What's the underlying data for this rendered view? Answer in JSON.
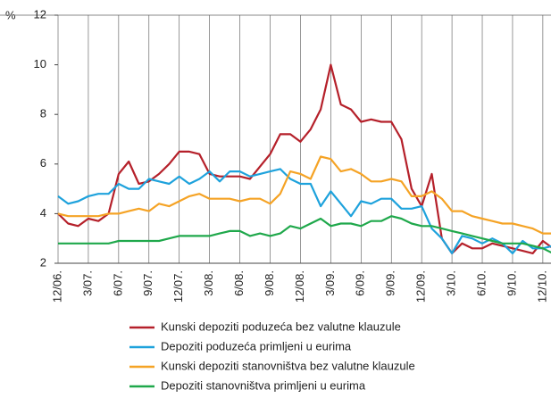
{
  "chart_data": {
    "type": "line",
    "ylabel": "%",
    "categories": [
      "12/06.",
      null,
      null,
      "3/07.",
      null,
      null,
      "6/07.",
      null,
      null,
      "9/07.",
      null,
      null,
      "12/07.",
      null,
      null,
      "3/08.",
      null,
      null,
      "6/08.",
      null,
      null,
      "9/08.",
      null,
      null,
      "12/08.",
      null,
      null,
      "3/09.",
      null,
      null,
      "6/09.",
      null,
      null,
      "9/09.",
      null,
      null,
      "12/09.",
      null,
      null,
      "3/10.",
      null,
      null,
      "6/10.",
      null,
      null,
      "9/10.",
      null,
      null,
      "12/10.",
      null
    ],
    "series": [
      {
        "name": "Kunski depoziti poduzeća bez valutne klauzule",
        "color": "#b5202a",
        "values": [
          4.0,
          3.6,
          3.5,
          3.8,
          3.7,
          4.0,
          5.6,
          6.1,
          5.2,
          5.3,
          5.6,
          6.0,
          6.5,
          6.5,
          6.4,
          5.6,
          5.5,
          5.5,
          5.5,
          5.4,
          5.9,
          6.4,
          7.2,
          7.2,
          6.9,
          7.4,
          8.2,
          10.0,
          8.4,
          8.2,
          7.7,
          7.8,
          7.7,
          7.7,
          7.0,
          5.0,
          4.3,
          5.6,
          3.0,
          2.4,
          2.8,
          2.6,
          2.6,
          2.8,
          2.7,
          2.6,
          2.5,
          2.4,
          2.9,
          2.6
        ]
      },
      {
        "name": "Depoziti poduzeća primljeni u eurima",
        "color": "#1ea2dc",
        "values": [
          4.7,
          4.4,
          4.5,
          4.7,
          4.8,
          4.8,
          5.2,
          5.0,
          5.0,
          5.4,
          5.3,
          5.2,
          5.5,
          5.2,
          5.4,
          5.7,
          5.3,
          5.7,
          5.7,
          5.5,
          5.6,
          5.7,
          5.8,
          5.4,
          5.2,
          5.2,
          4.3,
          4.9,
          4.4,
          3.9,
          4.5,
          4.4,
          4.6,
          4.6,
          4.2,
          4.2,
          4.3,
          3.4,
          3.0,
          2.4,
          3.1,
          3.0,
          2.8,
          3.0,
          2.8,
          2.4,
          2.9,
          2.6,
          2.6,
          2.7
        ]
      },
      {
        "name": "Kunski depoziti stanovništva bez valutne klauzule",
        "color": "#f5a325",
        "values": [
          4.0,
          3.9,
          3.9,
          3.9,
          3.9,
          4.0,
          4.0,
          4.1,
          4.2,
          4.1,
          4.4,
          4.3,
          4.5,
          4.7,
          4.8,
          4.6,
          4.6,
          4.6,
          4.5,
          4.6,
          4.6,
          4.4,
          4.8,
          5.7,
          5.6,
          5.4,
          6.3,
          6.2,
          5.7,
          5.8,
          5.6,
          5.3,
          5.3,
          5.4,
          5.3,
          4.7,
          4.7,
          4.9,
          4.6,
          4.1,
          4.1,
          3.9,
          3.8,
          3.7,
          3.6,
          3.6,
          3.5,
          3.4,
          3.2,
          3.2
        ]
      },
      {
        "name": "Depoziti stanovništva primljeni u eurima",
        "color": "#1fa84b",
        "values": [
          2.8,
          2.8,
          2.8,
          2.8,
          2.8,
          2.8,
          2.9,
          2.9,
          2.9,
          2.9,
          2.9,
          3.0,
          3.1,
          3.1,
          3.1,
          3.1,
          3.2,
          3.3,
          3.3,
          3.1,
          3.2,
          3.1,
          3.2,
          3.5,
          3.4,
          3.6,
          3.8,
          3.5,
          3.6,
          3.6,
          3.5,
          3.7,
          3.7,
          3.9,
          3.8,
          3.6,
          3.5,
          3.5,
          3.4,
          3.3,
          3.2,
          3.1,
          3.0,
          2.9,
          2.8,
          2.8,
          2.8,
          2.7,
          2.6,
          2.4
        ]
      }
    ],
    "ylim": [
      2,
      12
    ],
    "yticks": [
      2,
      4,
      6,
      8,
      10,
      12
    ],
    "grid": false
  }
}
